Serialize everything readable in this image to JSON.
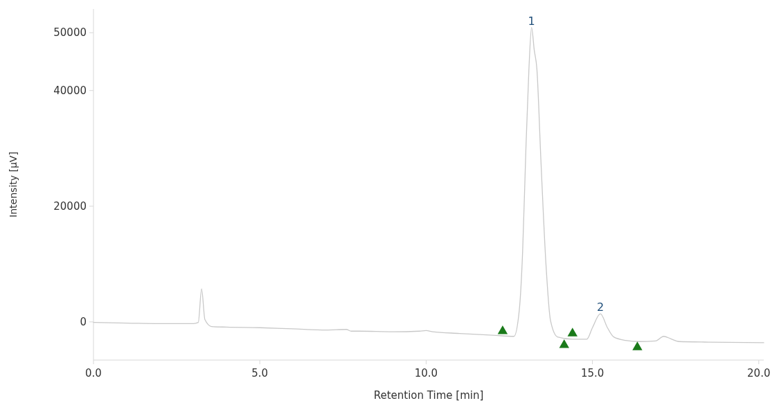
{
  "chart_data": {
    "type": "line",
    "xlabel": "Retention Time [min]",
    "ylabel": "Intensity [µV]",
    "xlim": [
      0,
      20.15
    ],
    "ylim": [
      -6600,
      54100
    ],
    "xticks": [
      {
        "value": 0,
        "label": "0.0"
      },
      {
        "value": 5,
        "label": "5.0"
      },
      {
        "value": 10,
        "label": "10.0"
      },
      {
        "value": 15,
        "label": "15.0"
      },
      {
        "value": 20,
        "label": "20.0"
      }
    ],
    "yticks": [
      0,
      20000,
      40000,
      50000
    ],
    "grid": false,
    "marker": "none",
    "line_style": "solid",
    "annotations": [
      {
        "text": "1",
        "x": 13.17,
        "y": 50900
      },
      {
        "text": "2",
        "x": 15.24,
        "y": 1400
      }
    ],
    "series": [
      {
        "color": "#c8c8c8",
        "x": [
          0,
          1,
          2,
          3,
          3.15,
          3.25,
          3.35,
          3.55,
          4,
          5,
          6,
          7,
          7.6,
          7.75,
          8,
          9,
          9.8,
          10,
          10.2,
          11,
          12,
          12.64,
          12.8,
          12.9,
          13.0,
          13.09,
          13.17,
          13.25,
          13.33,
          13.45,
          13.6,
          13.74,
          13.95,
          14.4,
          14.83,
          15.0,
          15.24,
          15.45,
          15.64,
          16.0,
          16.4,
          16.9,
          17.14,
          17.35,
          17.6,
          18.5,
          20.15
        ],
        "values": [
          -100,
          -200,
          -300,
          -300,
          -100,
          5700,
          400,
          -800,
          -900,
          -1000,
          -1200,
          -1400,
          -1300,
          -1600,
          -1600,
          -1700,
          -1600,
          -1500,
          -1700,
          -2000,
          -2300,
          -2500,
          2000,
          12000,
          30000,
          43700,
          50900,
          47000,
          43700,
          28000,
          10200,
          200,
          -2600,
          -3000,
          -3000,
          -1000,
          1400,
          -1000,
          -2600,
          -3200,
          -3400,
          -3300,
          -2500,
          -2900,
          -3400,
          -3500,
          -3600
        ]
      },
      {
        "type": "scatter",
        "color": "#1a7a1a",
        "marker": "triangle",
        "x": [
          12.3,
          14.4,
          14.15,
          16.35
        ],
        "values": [
          -1600,
          -2000,
          -4000,
          -4400
        ]
      }
    ]
  }
}
